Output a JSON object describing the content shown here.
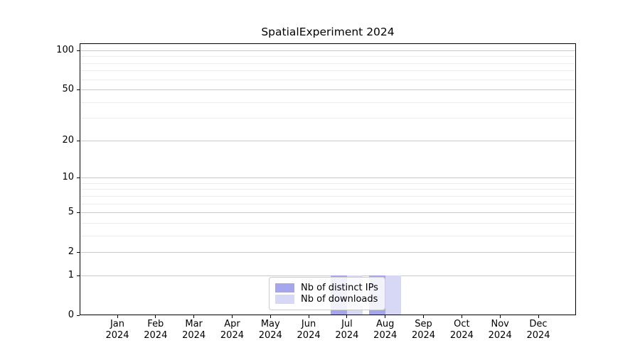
{
  "title": "SpatialExperiment 2024",
  "chart_data": {
    "type": "bar",
    "title": "SpatialExperiment 2024",
    "categories": [
      "Jan 2024",
      "Feb 2024",
      "Mar 2024",
      "Apr 2024",
      "May 2024",
      "Jun 2024",
      "Jul 2024",
      "Aug 2024",
      "Sep 2024",
      "Oct 2024",
      "Nov 2024",
      "Dec 2024"
    ],
    "series": [
      {
        "name": "Nb of distinct IPs",
        "color": "#a6a6ec",
        "values": [
          0,
          0,
          0,
          0,
          0,
          0,
          1,
          1,
          0,
          0,
          0,
          0
        ]
      },
      {
        "name": "Nb of downloads",
        "color": "#d7d7f6",
        "values": [
          0,
          0,
          0,
          0,
          0,
          0,
          1,
          1,
          0,
          0,
          0,
          0
        ]
      }
    ],
    "xlabel": "",
    "ylabel": "",
    "y_scale": "log10(value+1)",
    "y_major_ticks": [
      0,
      1,
      2,
      5,
      10,
      20,
      50,
      100
    ],
    "y_minor_ticks": [
      3,
      4,
      6,
      7,
      8,
      9,
      30,
      40,
      60,
      70,
      80,
      90
    ],
    "ylim": [
      0,
      113
    ],
    "grid": "horizontal",
    "legend_position": "inside-bottom-center",
    "colors": {
      "background": "#ffffff",
      "axis": "#000000",
      "grid_major": "#c8c8c8",
      "grid_minor": "#ececec",
      "legend_border": "#cccccc"
    }
  }
}
